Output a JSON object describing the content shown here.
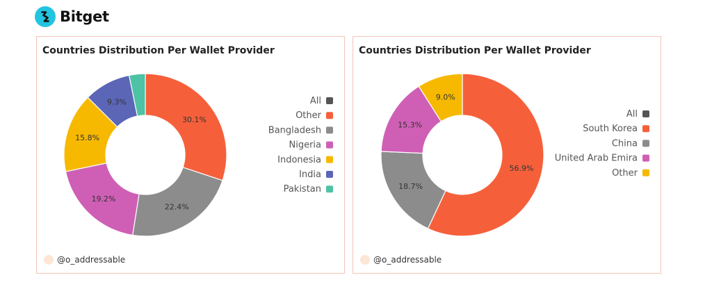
{
  "brand": {
    "name": "Bitget",
    "logo_icon": "bitget-logo-icon",
    "logo_color": "#22c4e0"
  },
  "colors": {
    "orange": "#f5603b",
    "gray": "#8c8c8c",
    "pink": "#cf5fb5",
    "yellow": "#f6b900",
    "blue": "#5b66b6",
    "teal": "#4ec2a4",
    "dark": "#555555"
  },
  "chart_data": [
    {
      "type": "pie",
      "donut": true,
      "title": "Countries Distribution Per Wallet Provider",
      "legend": {
        "placement": "right",
        "entries": [
          {
            "name": "All",
            "color": "#555555"
          },
          {
            "name": "Other",
            "color": "#f5603b"
          },
          {
            "name": "Bangladesh",
            "color": "#8c8c8c"
          },
          {
            "name": "Nigeria",
            "color": "#cf5fb5"
          },
          {
            "name": "Indonesia",
            "color": "#f6b900"
          },
          {
            "name": "India",
            "color": "#5b66b6"
          },
          {
            "name": "Pakistan",
            "color": "#4ec2a4"
          }
        ]
      },
      "slices": [
        {
          "name": "Other",
          "value": 30.1,
          "label": "30.1%",
          "color": "#f5603b"
        },
        {
          "name": "Bangladesh",
          "value": 22.4,
          "label": "22.4%",
          "color": "#8c8c8c"
        },
        {
          "name": "Nigeria",
          "value": 19.2,
          "label": "19.2%",
          "color": "#cf5fb5"
        },
        {
          "name": "Indonesia",
          "value": 15.8,
          "label": "15.8%",
          "color": "#f6b900"
        },
        {
          "name": "India",
          "value": 9.3,
          "label": "9.3%",
          "color": "#5b66b6"
        },
        {
          "name": "Pakistan",
          "value": 3.2,
          "label": "",
          "color": "#4ec2a4"
        }
      ],
      "footer": "@o_addressable"
    },
    {
      "type": "pie",
      "donut": true,
      "title": "Countries Distribution Per Wallet Provider",
      "legend": {
        "placement": "right",
        "entries": [
          {
            "name": "All",
            "color": "#555555"
          },
          {
            "name": "South Korea",
            "color": "#f5603b"
          },
          {
            "name": "China",
            "color": "#8c8c8c"
          },
          {
            "name": "United Arab Emira",
            "color": "#cf5fb5"
          },
          {
            "name": "Other",
            "color": "#f6b900"
          }
        ]
      },
      "slices": [
        {
          "name": "South Korea",
          "value": 56.9,
          "label": "56.9%",
          "color": "#f5603b"
        },
        {
          "name": "China",
          "value": 18.7,
          "label": "18.7%",
          "color": "#8c8c8c"
        },
        {
          "name": "United Arab Emira",
          "value": 15.3,
          "label": "15.3%",
          "color": "#cf5fb5"
        },
        {
          "name": "Other",
          "value": 9.0,
          "label": "9.0%",
          "color": "#f6b900"
        }
      ],
      "footer": "@o_addressable"
    }
  ]
}
